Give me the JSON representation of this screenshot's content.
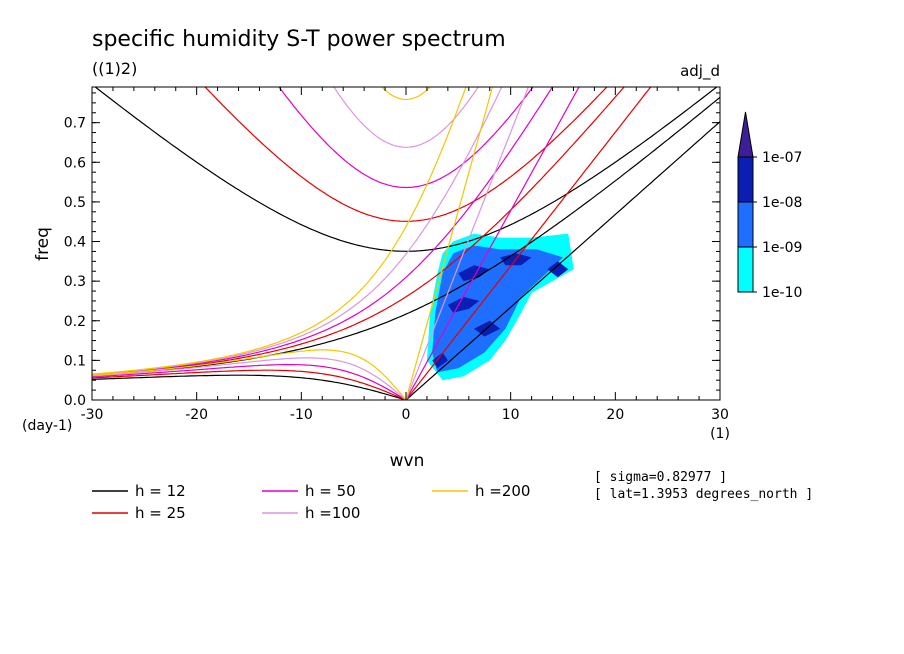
{
  "chart_data": {
    "type": "heatmap",
    "title": "specific humidity S-T power spectrum",
    "subtitle": "((1)2)",
    "top_right_label": "adj_d",
    "xlabel": "wvn",
    "ylabel": "freq",
    "x_unit": "(1)",
    "y_unit": "(day-1)",
    "xlim": [
      -30,
      30
    ],
    "ylim": [
      0,
      0.79
    ],
    "x_ticks": [
      -30,
      -20,
      -10,
      0,
      10,
      20,
      30
    ],
    "y_ticks": [
      0.0,
      0.1,
      0.2,
      0.3,
      0.4,
      0.5,
      0.6,
      0.7
    ],
    "x_tick_labels": [
      "-30",
      "-20",
      "-10",
      "0",
      "10",
      "20",
      "30"
    ],
    "y_tick_labels": [
      "0.0",
      "0.1",
      "0.2",
      "0.3",
      "0.4",
      "0.5",
      "0.6",
      "0.7"
    ],
    "colorbar": {
      "labels": [
        "1e-10",
        "1e-09",
        "1e-08",
        "1e-07"
      ],
      "colors": [
        "#00ffff",
        "#1e6eff",
        "#0a1eb4",
        "#3c1e96"
      ]
    },
    "annotations": [
      "[ sigma=0.82977 ]",
      "[ lat=1.3953 degrees_north ]"
    ],
    "series": [
      {
        "name": "h = 12",
        "h": 12,
        "color": "#000000"
      },
      {
        "name": "h = 25",
        "h": 25,
        "color": "#e60000"
      },
      {
        "name": "h = 50",
        "h": 50,
        "color": "#e100c8"
      },
      {
        "name": "h =100",
        "h": 100,
        "color": "#dc96dc"
      },
      {
        "name": "h =200",
        "h": 200,
        "color": "#f0c800"
      }
    ],
    "spectral_regions": [
      {
        "level": "1e-10",
        "points": [
          [
            2.0,
            0.1
          ],
          [
            2.3,
            0.22
          ],
          [
            3.0,
            0.32
          ],
          [
            3.5,
            0.37
          ],
          [
            4.5,
            0.4
          ],
          [
            6.5,
            0.42
          ],
          [
            9.0,
            0.41
          ],
          [
            12.0,
            0.41
          ],
          [
            15.5,
            0.42
          ],
          [
            15.8,
            0.37
          ],
          [
            16.0,
            0.33
          ],
          [
            14.0,
            0.3
          ],
          [
            12.0,
            0.27
          ],
          [
            11.0,
            0.22
          ],
          [
            9.5,
            0.15
          ],
          [
            8.0,
            0.1
          ],
          [
            5.5,
            0.06
          ],
          [
            3.5,
            0.05
          ]
        ]
      },
      {
        "level": "1e-09",
        "points": [
          [
            2.5,
            0.12
          ],
          [
            2.8,
            0.22
          ],
          [
            3.5,
            0.32
          ],
          [
            4.5,
            0.37
          ],
          [
            6.5,
            0.39
          ],
          [
            9.0,
            0.38
          ],
          [
            12.5,
            0.38
          ],
          [
            15.0,
            0.36
          ],
          [
            13.0,
            0.31
          ],
          [
            11.0,
            0.26
          ],
          [
            9.5,
            0.18
          ],
          [
            7.5,
            0.12
          ],
          [
            5.0,
            0.08
          ],
          [
            3.0,
            0.07
          ]
        ]
      },
      {
        "level": "1e-08",
        "points": [
          [
            5.0,
            0.32
          ],
          [
            6.5,
            0.34
          ],
          [
            8.0,
            0.33
          ],
          [
            7.0,
            0.31
          ],
          [
            5.5,
            0.3
          ]
        ]
      },
      {
        "level": "1e-08",
        "points": [
          [
            9.0,
            0.36
          ],
          [
            10.5,
            0.37
          ],
          [
            12.0,
            0.36
          ],
          [
            11.0,
            0.34
          ],
          [
            9.5,
            0.34
          ]
        ]
      },
      {
        "level": "1e-08",
        "points": [
          [
            4.0,
            0.24
          ],
          [
            5.5,
            0.26
          ],
          [
            7.0,
            0.25
          ],
          [
            6.0,
            0.23
          ],
          [
            4.5,
            0.22
          ]
        ]
      },
      {
        "level": "1e-08",
        "points": [
          [
            6.5,
            0.18
          ],
          [
            8.0,
            0.2
          ],
          [
            9.0,
            0.18
          ],
          [
            7.5,
            0.16
          ]
        ]
      },
      {
        "level": "1e-08",
        "points": [
          [
            2.5,
            0.1
          ],
          [
            3.5,
            0.12
          ],
          [
            4.0,
            0.1
          ],
          [
            3.0,
            0.08
          ]
        ]
      },
      {
        "level": "1e-08",
        "points": [
          [
            13.5,
            0.33
          ],
          [
            14.5,
            0.35
          ],
          [
            15.5,
            0.33
          ],
          [
            14.5,
            0.31
          ]
        ]
      }
    ]
  }
}
